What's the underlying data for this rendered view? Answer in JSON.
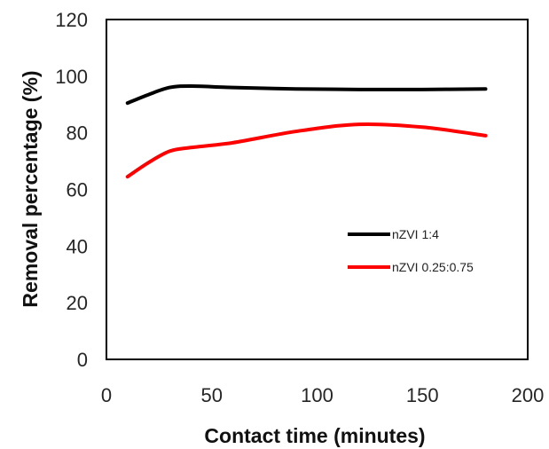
{
  "chart_data": {
    "type": "line",
    "title": "",
    "xlabel": "Contact time (minutes)",
    "ylabel": "Removal percentage (%)",
    "xlim": [
      0,
      200
    ],
    "ylim": [
      0,
      120
    ],
    "xticks": [
      0,
      50,
      100,
      150,
      200
    ],
    "yticks": [
      0,
      20,
      40,
      60,
      80,
      100,
      120
    ],
    "xtick_labels": [
      "0",
      "50",
      "100",
      "150",
      "200"
    ],
    "ytick_labels": [
      "0",
      "20",
      "40",
      "60",
      "80",
      "100",
      "120"
    ],
    "grid": false,
    "legend_position": "inside-right",
    "smooth": true,
    "series": [
      {
        "name": "nZVI 1:4",
        "color": "#000000",
        "x": [
          10,
          20,
          30,
          40,
          60,
          90,
          120,
          150,
          180
        ],
        "y": [
          90.5,
          93.5,
          96,
          96.5,
          96,
          95.5,
          95.3,
          95.3,
          95.5
        ]
      },
      {
        "name": "nZVI 0.25:0.75",
        "color": "#ff0000",
        "x": [
          10,
          20,
          30,
          40,
          60,
          90,
          120,
          150,
          180
        ],
        "y": [
          64.5,
          69.5,
          73.5,
          74.8,
          76.5,
          80.5,
          83,
          82,
          79
        ]
      }
    ]
  }
}
